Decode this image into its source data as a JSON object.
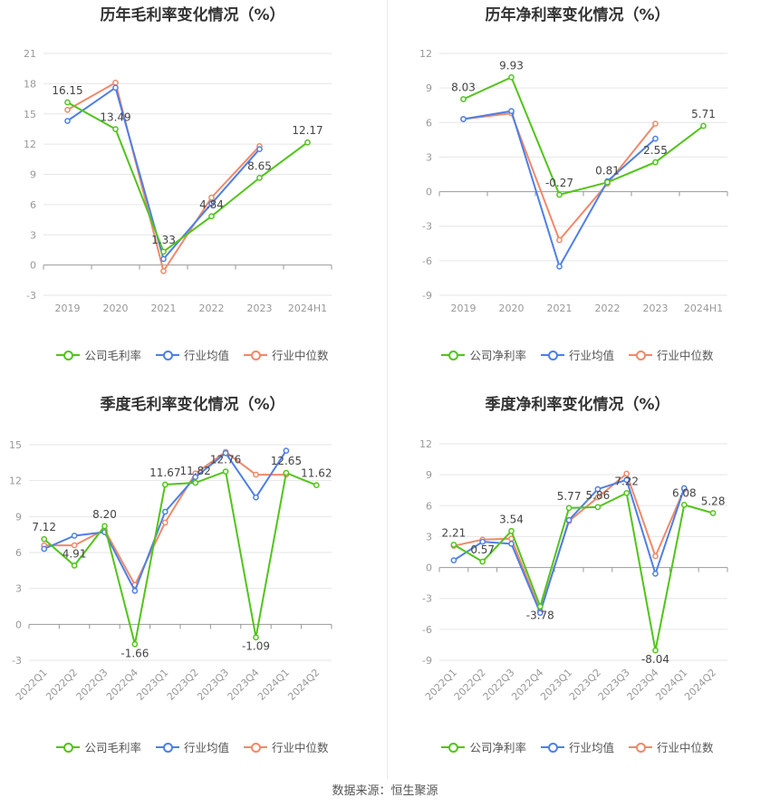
{
  "source": "数据来源：恒生聚源",
  "chart_data": [
    {
      "type": "line",
      "title": "历年毛利率变化情况（%）",
      "categories": [
        "2019",
        "2020",
        "2021",
        "2022",
        "2023",
        "2024H1"
      ],
      "ylim": [
        -3,
        21
      ],
      "yticks": [
        -3,
        0,
        3,
        6,
        9,
        12,
        15,
        18,
        21
      ],
      "rotate_x": false,
      "series": [
        {
          "name": "公司毛利率",
          "color": "#52c41a",
          "values": [
            16.15,
            13.49,
            1.33,
            4.84,
            8.65,
            12.17
          ],
          "labels": [
            "16.15",
            "13.49",
            "1.33",
            "4.84",
            "8.65",
            "12.17"
          ]
        },
        {
          "name": "行业均值",
          "color": "#4e7fe6",
          "values": [
            14.3,
            17.6,
            0.6,
            6.1,
            11.5,
            null
          ]
        },
        {
          "name": "行业中位数",
          "color": "#f0896a",
          "values": [
            15.4,
            18.1,
            -0.6,
            6.7,
            11.8,
            null
          ]
        }
      ]
    },
    {
      "type": "line",
      "title": "历年净利率变化情况（%）",
      "categories": [
        "2019",
        "2020",
        "2021",
        "2022",
        "2023",
        "2024H1"
      ],
      "ylim": [
        -9,
        12
      ],
      "yticks": [
        -9,
        -6,
        -3,
        0,
        3,
        6,
        9,
        12
      ],
      "rotate_x": false,
      "series": [
        {
          "name": "公司净利率",
          "color": "#52c41a",
          "values": [
            8.03,
            9.93,
            -0.27,
            0.81,
            2.55,
            5.71
          ],
          "labels": [
            "8.03",
            "9.93",
            "-0.27",
            "0.81",
            "2.55",
            "5.71"
          ]
        },
        {
          "name": "行业均值",
          "color": "#4e7fe6",
          "values": [
            6.3,
            7.0,
            -6.5,
            0.9,
            4.6,
            null
          ]
        },
        {
          "name": "行业中位数",
          "color": "#f0896a",
          "values": [
            6.3,
            6.8,
            -4.2,
            0.7,
            5.9,
            null
          ]
        }
      ]
    },
    {
      "type": "line",
      "title": "季度毛利率变化情况（%）",
      "categories": [
        "2022Q1",
        "2022Q2",
        "2022Q3",
        "2022Q4",
        "2023Q1",
        "2023Q2",
        "2023Q3",
        "2023Q4",
        "2024Q1",
        "2024Q2"
      ],
      "ylim": [
        -3,
        15
      ],
      "yticks": [
        -3,
        0,
        3,
        6,
        9,
        12,
        15
      ],
      "rotate_x": true,
      "series": [
        {
          "name": "公司毛利率",
          "color": "#52c41a",
          "values": [
            7.12,
            4.91,
            8.2,
            -1.66,
            11.67,
            11.82,
            12.76,
            -1.09,
            12.65,
            11.62
          ],
          "labels": [
            "7.12",
            "4.91",
            "8.20",
            "-1.66",
            "11.67",
            "11.82",
            "12.76",
            "-1.09",
            "12.65",
            "11.62"
          ]
        },
        {
          "name": "行业均值",
          "color": "#4e7fe6",
          "values": [
            6.3,
            7.4,
            7.7,
            2.8,
            9.4,
            12.3,
            14.3,
            10.6,
            14.5,
            null
          ]
        },
        {
          "name": "行业中位数",
          "color": "#f0896a",
          "values": [
            6.6,
            6.6,
            7.9,
            3.3,
            8.5,
            12.6,
            14.4,
            12.5,
            12.5,
            null
          ]
        }
      ]
    },
    {
      "type": "line",
      "title": "季度净利率变化情况（%）",
      "categories": [
        "2022Q1",
        "2022Q2",
        "2022Q3",
        "2022Q4",
        "2023Q1",
        "2023Q2",
        "2023Q3",
        "2023Q4",
        "2024Q1",
        "2024Q2"
      ],
      "ylim": [
        -9,
        12
      ],
      "yticks": [
        -9,
        -6,
        -3,
        0,
        3,
        6,
        9,
        12
      ],
      "rotate_x": true,
      "series": [
        {
          "name": "公司净利率",
          "color": "#52c41a",
          "values": [
            2.21,
            0.57,
            3.54,
            -3.78,
            5.77,
            5.86,
            7.22,
            -8.04,
            6.08,
            5.28
          ],
          "labels": [
            "2.21",
            "0.57",
            "3.54",
            "-3.78",
            "5.77",
            "5.86",
            "7.22",
            "-8.04",
            "6.08",
            "5.28"
          ]
        },
        {
          "name": "行业均值",
          "color": "#4e7fe6",
          "values": [
            0.7,
            2.5,
            2.3,
            -4.4,
            4.6,
            7.6,
            8.5,
            -0.6,
            7.7,
            null
          ]
        },
        {
          "name": "行业中位数",
          "color": "#f0896a",
          "values": [
            2.1,
            2.7,
            2.8,
            -4.2,
            4.5,
            6.8,
            9.1,
            1.1,
            7.6,
            null
          ]
        }
      ]
    }
  ]
}
